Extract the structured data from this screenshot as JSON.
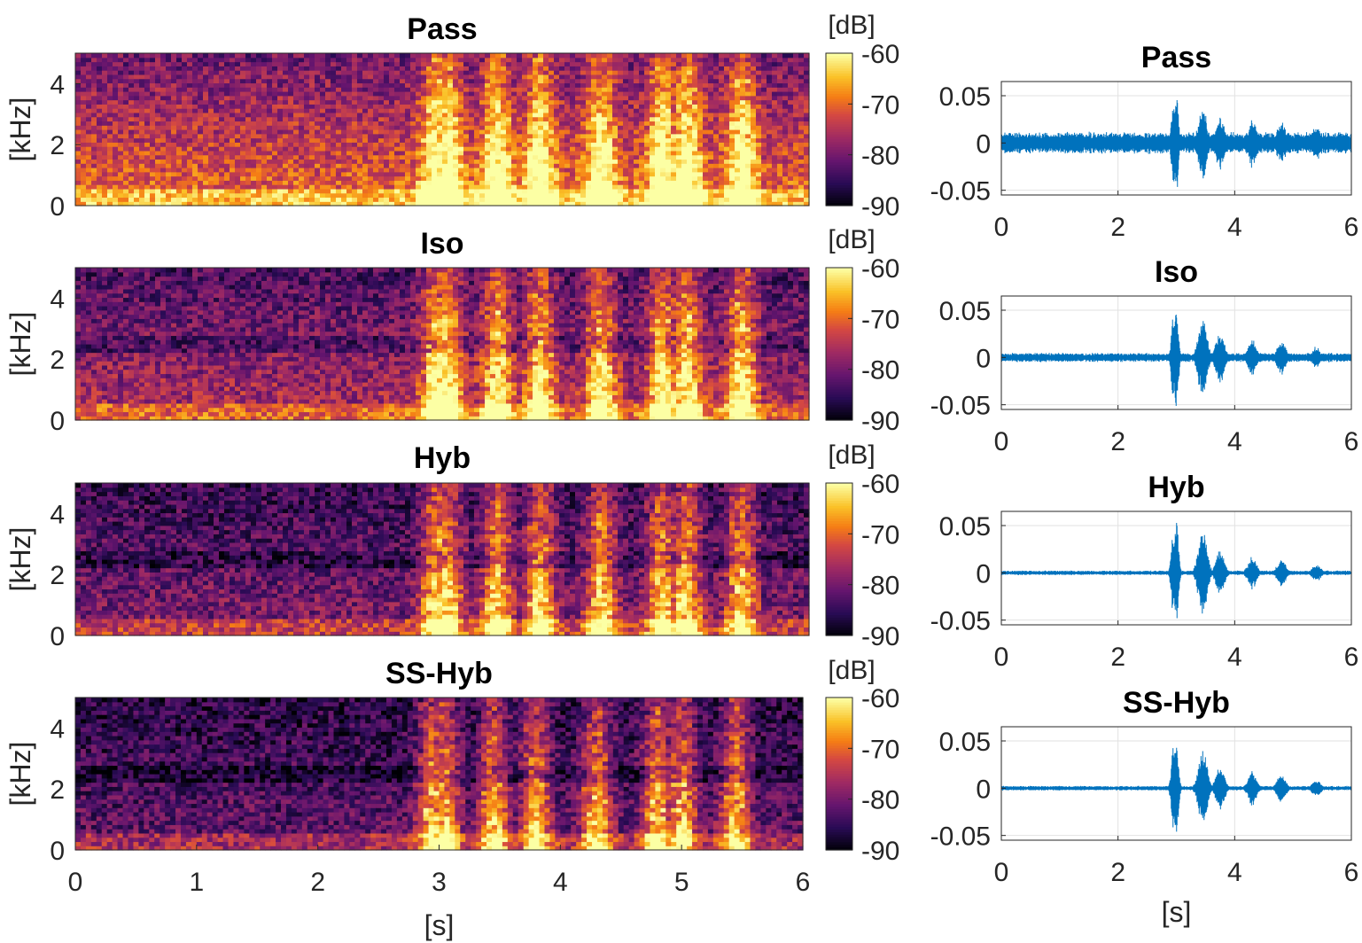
{
  "chart_data": [
    {
      "type": "heatmap",
      "title": "Pass",
      "ylabel": "[kHz]",
      "xlabel": "",
      "xlim": [
        0,
        6
      ],
      "ylim": [
        0,
        5
      ],
      "yticks": [
        "0",
        "2",
        "4"
      ],
      "xticks": [],
      "colorbar": {
        "label": "[dB]",
        "range": [
          -90,
          -60
        ],
        "ticks": [
          "-60",
          "-70",
          "-80",
          "-90"
        ],
        "colormap": "inferno"
      },
      "noise_floor_level": 0.7,
      "speech_onset_s": 2.7,
      "speech_level": 0.8
    },
    {
      "type": "heatmap",
      "title": "Iso",
      "ylabel": "[kHz]",
      "xlabel": "",
      "xlim": [
        0,
        6
      ],
      "ylim": [
        0,
        5
      ],
      "yticks": [
        "0",
        "2",
        "4"
      ],
      "xticks": [],
      "colorbar": {
        "label": "[dB]",
        "range": [
          -90,
          -60
        ],
        "ticks": [
          "-60",
          "-70",
          "-80",
          "-90"
        ],
        "colormap": "inferno"
      },
      "noise_floor_level": 0.5,
      "speech_onset_s": 2.7,
      "speech_level": 0.85
    },
    {
      "type": "heatmap",
      "title": "Hyb",
      "ylabel": "[kHz]",
      "xlabel": "",
      "xlim": [
        0,
        6
      ],
      "ylim": [
        0,
        5
      ],
      "yticks": [
        "0",
        "2",
        "4"
      ],
      "xticks": [],
      "colorbar": {
        "label": "[dB]",
        "range": [
          -90,
          -60
        ],
        "ticks": [
          "-60",
          "-70",
          "-80",
          "-90"
        ],
        "colormap": "inferno"
      },
      "noise_floor_level": 0.38,
      "speech_onset_s": 2.7,
      "speech_level": 0.85
    },
    {
      "type": "heatmap",
      "title": "SS-Hyb",
      "ylabel": "[kHz]",
      "xlabel": "[s]",
      "xlim": [
        0,
        6
      ],
      "ylim": [
        0,
        5
      ],
      "yticks": [
        "0",
        "2",
        "4"
      ],
      "xticks": [
        "0",
        "1",
        "2",
        "3",
        "4",
        "5",
        "6"
      ],
      "colorbar": {
        "label": "[dB]",
        "range": [
          -90,
          -60
        ],
        "ticks": [
          "-60",
          "-70",
          "-80",
          "-90"
        ],
        "colormap": "inferno"
      },
      "noise_floor_level": 0.3,
      "speech_onset_s": 2.7,
      "speech_level": 0.85
    },
    {
      "type": "line",
      "title": "Pass",
      "xlabel": "",
      "xlim": [
        0,
        6
      ],
      "ylim": [
        -0.055,
        0.065
      ],
      "xticks": [
        "0",
        "2",
        "4",
        "6"
      ],
      "yticks": [
        "0.05",
        "0",
        "-0.05"
      ],
      "grid": true,
      "color": "#0072BD",
      "noise_amplitude": 0.012,
      "bursts": [
        {
          "t": 2.95,
          "amp": 0.05
        },
        {
          "t": 3.0,
          "amp": 0.06
        },
        {
          "t": 3.45,
          "amp": 0.042
        },
        {
          "t": 3.75,
          "amp": 0.03
        },
        {
          "t": 4.3,
          "amp": 0.028
        },
        {
          "t": 4.8,
          "amp": 0.025
        },
        {
          "t": 5.4,
          "amp": 0.02
        }
      ]
    },
    {
      "type": "line",
      "title": "Iso",
      "xlabel": "",
      "xlim": [
        0,
        6
      ],
      "ylim": [
        -0.055,
        0.065
      ],
      "xticks": [
        "0",
        "2",
        "4",
        "6"
      ],
      "yticks": [
        "0.05",
        "0",
        "-0.05"
      ],
      "grid": true,
      "color": "#0072BD",
      "noise_amplitude": 0.005,
      "bursts": [
        {
          "t": 2.95,
          "amp": 0.05
        },
        {
          "t": 3.0,
          "amp": 0.06
        },
        {
          "t": 3.45,
          "amp": 0.045
        },
        {
          "t": 3.75,
          "amp": 0.03
        },
        {
          "t": 4.3,
          "amp": 0.02
        },
        {
          "t": 4.8,
          "amp": 0.02
        },
        {
          "t": 5.4,
          "amp": 0.012
        }
      ]
    },
    {
      "type": "line",
      "title": "Hyb",
      "xlabel": "",
      "xlim": [
        0,
        6
      ],
      "ylim": [
        -0.055,
        0.065
      ],
      "xticks": [
        "0",
        "2",
        "4",
        "6"
      ],
      "yticks": [
        "0.05",
        "0",
        "-0.05"
      ],
      "grid": true,
      "color": "#0072BD",
      "noise_amplitude": 0.0025,
      "bursts": [
        {
          "t": 2.95,
          "amp": 0.05
        },
        {
          "t": 3.0,
          "amp": 0.06
        },
        {
          "t": 3.45,
          "amp": 0.048
        },
        {
          "t": 3.75,
          "amp": 0.025
        },
        {
          "t": 4.3,
          "amp": 0.018
        },
        {
          "t": 4.8,
          "amp": 0.016
        },
        {
          "t": 5.4,
          "amp": 0.01
        }
      ]
    },
    {
      "type": "line",
      "title": "SS-Hyb",
      "xlabel": "[s]",
      "xlim": [
        0,
        6
      ],
      "ylim": [
        -0.055,
        0.065
      ],
      "xticks": [
        "0",
        "2",
        "4",
        "6"
      ],
      "yticks": [
        "0.05",
        "0",
        "-0.05"
      ],
      "grid": true,
      "color": "#0072BD",
      "noise_amplitude": 0.0025,
      "bursts": [
        {
          "t": 2.95,
          "amp": 0.05
        },
        {
          "t": 3.0,
          "amp": 0.06
        },
        {
          "t": 3.45,
          "amp": 0.045
        },
        {
          "t": 3.75,
          "amp": 0.025
        },
        {
          "t": 4.3,
          "amp": 0.02
        },
        {
          "t": 4.8,
          "amp": 0.016
        },
        {
          "t": 5.4,
          "amp": 0.01
        }
      ]
    }
  ]
}
